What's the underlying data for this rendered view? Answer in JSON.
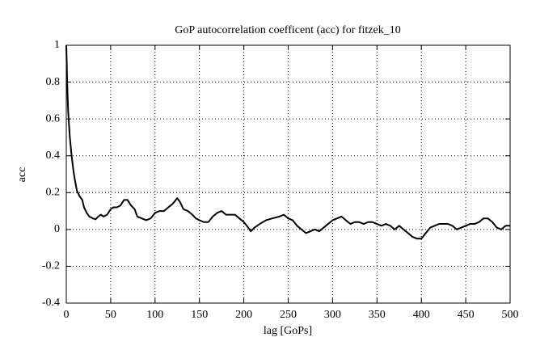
{
  "chart_data": {
    "type": "line",
    "title": "GoP autocorrelation coefficent (acc) for fitzek_10",
    "xlabel": "lag [GoPs]",
    "ylabel": "acc",
    "x": [
      0,
      1,
      2,
      4,
      6,
      8,
      10,
      12,
      15,
      18,
      20,
      23,
      26,
      30,
      33,
      36,
      39,
      42,
      46,
      50,
      53,
      57,
      61,
      65,
      69,
      73,
      77,
      80,
      85,
      90,
      95,
      100,
      105,
      110,
      115,
      120,
      125,
      128,
      132,
      137,
      142,
      146,
      150,
      155,
      160,
      165,
      170,
      175,
      180,
      185,
      190,
      195,
      200,
      205,
      208,
      212,
      218,
      225,
      232,
      240,
      245,
      250,
      255,
      260,
      265,
      270,
      275,
      280,
      285,
      290,
      295,
      300,
      305,
      310,
      315,
      320,
      325,
      330,
      335,
      340,
      345,
      350,
      355,
      360,
      365,
      370,
      375,
      380,
      385,
      390,
      395,
      400,
      405,
      410,
      415,
      420,
      425,
      430,
      435,
      440,
      445,
      450,
      455,
      460,
      465,
      470,
      475,
      480,
      485,
      490,
      495,
      500
    ],
    "values": [
      1.0,
      0.8,
      0.65,
      0.5,
      0.4,
      0.32,
      0.26,
      0.21,
      0.18,
      0.16,
      0.12,
      0.09,
      0.07,
      0.06,
      0.055,
      0.07,
      0.08,
      0.07,
      0.08,
      0.11,
      0.12,
      0.12,
      0.13,
      0.16,
      0.16,
      0.13,
      0.11,
      0.07,
      0.06,
      0.05,
      0.06,
      0.09,
      0.1,
      0.1,
      0.12,
      0.14,
      0.17,
      0.15,
      0.11,
      0.1,
      0.08,
      0.06,
      0.05,
      0.04,
      0.04,
      0.07,
      0.09,
      0.1,
      0.08,
      0.08,
      0.08,
      0.06,
      0.04,
      0.01,
      -0.01,
      0.01,
      0.03,
      0.05,
      0.06,
      0.07,
      0.08,
      0.06,
      0.05,
      0.02,
      0.0,
      -0.02,
      -0.01,
      0.0,
      -0.01,
      0.01,
      0.03,
      0.05,
      0.06,
      0.07,
      0.05,
      0.03,
      0.04,
      0.04,
      0.03,
      0.04,
      0.04,
      0.03,
      0.02,
      0.03,
      0.02,
      0.0,
      0.02,
      0.0,
      -0.02,
      -0.04,
      -0.05,
      -0.05,
      -0.02,
      0.01,
      0.02,
      0.03,
      0.03,
      0.03,
      0.02,
      0.0,
      0.01,
      0.02,
      0.03,
      0.03,
      0.04,
      0.06,
      0.06,
      0.04,
      0.01,
      0.0,
      0.02,
      0.02
    ],
    "color": "#000000",
    "xlim": [
      0,
      500
    ],
    "xticks": [
      0,
      50,
      100,
      150,
      200,
      250,
      300,
      350,
      400,
      450,
      500
    ],
    "ylim": [
      -0.4,
      1
    ],
    "yticks": [
      -0.4,
      -0.2,
      0,
      0.2,
      0.4,
      0.6,
      0.8,
      1
    ],
    "grid": true
  }
}
